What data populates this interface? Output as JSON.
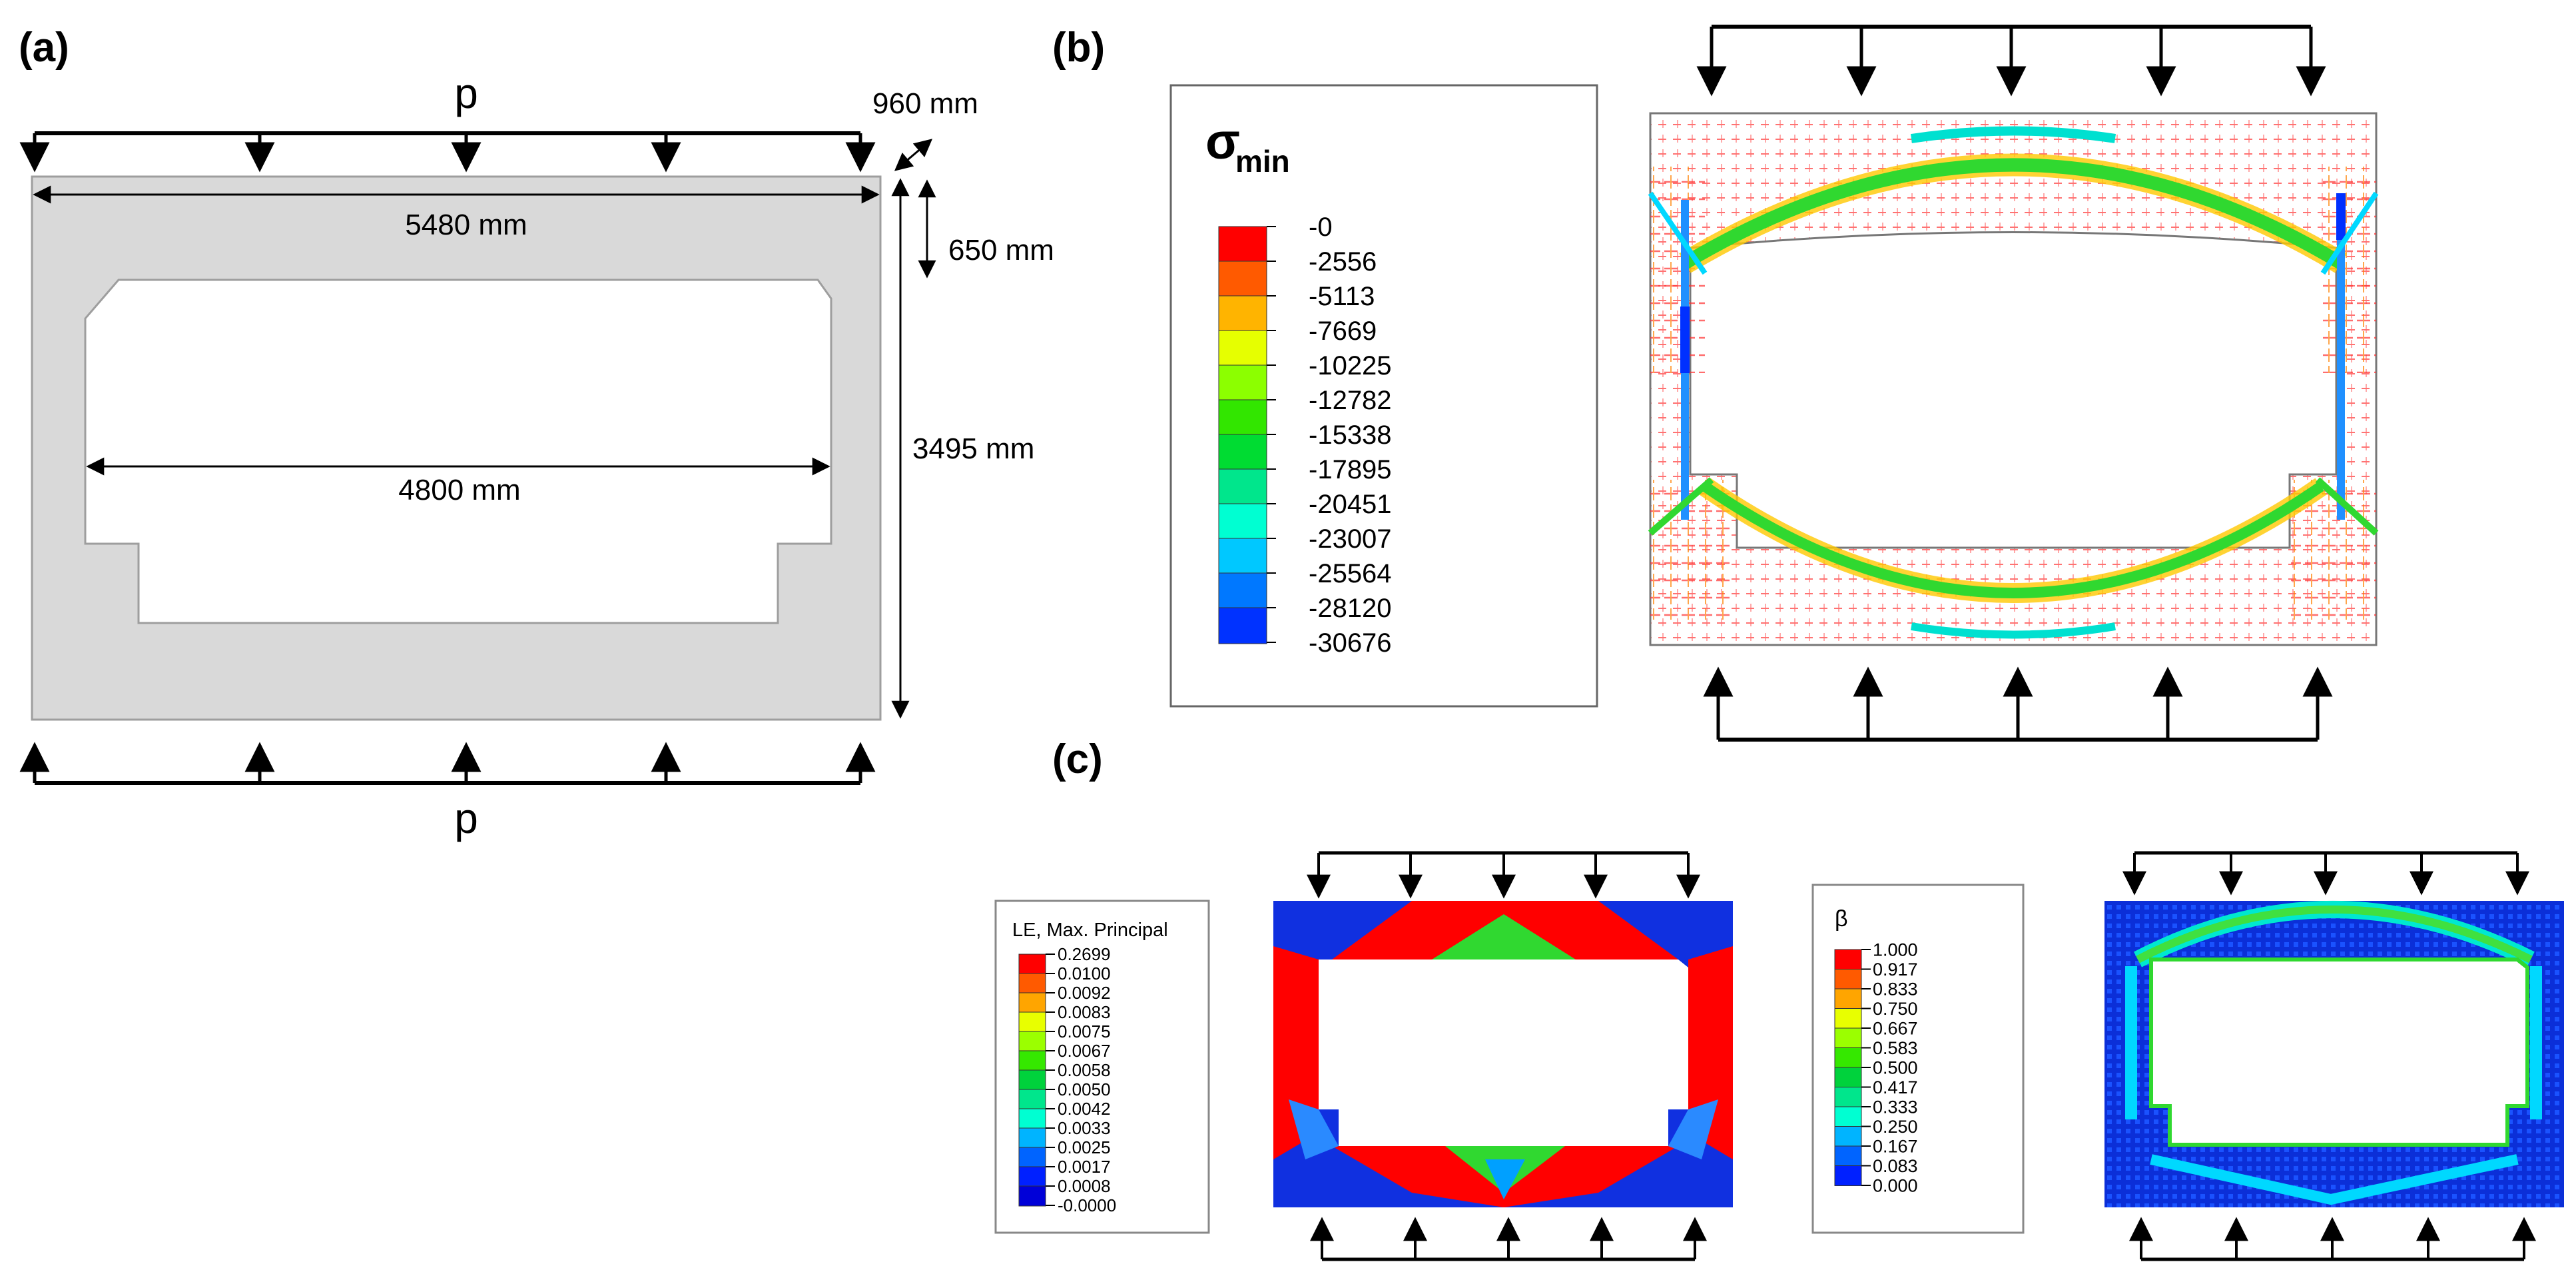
{
  "panel_a": {
    "label": "(a)",
    "load_top": "p",
    "load_bottom": "p",
    "dim_thickness": "960 mm",
    "dim_width": "5480 mm",
    "dim_inner_width": "4800 mm",
    "dim_slab": "650 mm",
    "dim_height": "3495 mm"
  },
  "panel_b": {
    "label": "(b)",
    "legend_title": "σ",
    "legend_subscript": "min",
    "legend_values": [
      "-0",
      "-2556",
      "-5113",
      "-7669",
      "-10225",
      "-12782",
      "-15338",
      "-17895",
      "-20451",
      "-23007",
      "-25564",
      "-28120",
      "-30676"
    ],
    "legend_colors": [
      "#ff0000",
      "#ff5a00",
      "#ffb400",
      "#e6ff00",
      "#8cff00",
      "#32e600",
      "#00dc32",
      "#00e68c",
      "#00ffd2",
      "#00c8ff",
      "#0078ff",
      "#0032ff",
      "#0000ff"
    ]
  },
  "panel_c": {
    "label": "(c)",
    "le_legend_title": "LE, Max. Principal",
    "le_values": [
      "0.2699",
      "0.0100",
      "0.0092",
      "0.0083",
      "0.0075",
      "0.0067",
      "0.0058",
      "0.0050",
      "0.0042",
      "0.0033",
      "0.0025",
      "0.0017",
      "0.0008",
      "-0.0000"
    ],
    "beta_legend_title": "β",
    "beta_values": [
      "1.000",
      "0.917",
      "0.833",
      "0.750",
      "0.667",
      "0.583",
      "0.500",
      "0.417",
      "0.333",
      "0.250",
      "0.167",
      "0.083",
      "0.000"
    ],
    "contour_colors": [
      "#ff0000",
      "#ff5a00",
      "#ffa500",
      "#e8ff00",
      "#9bff00",
      "#35e800",
      "#00d23c",
      "#00e68c",
      "#00ffd2",
      "#00b4ff",
      "#0064ff",
      "#0020ff",
      "#0000d8"
    ]
  }
}
